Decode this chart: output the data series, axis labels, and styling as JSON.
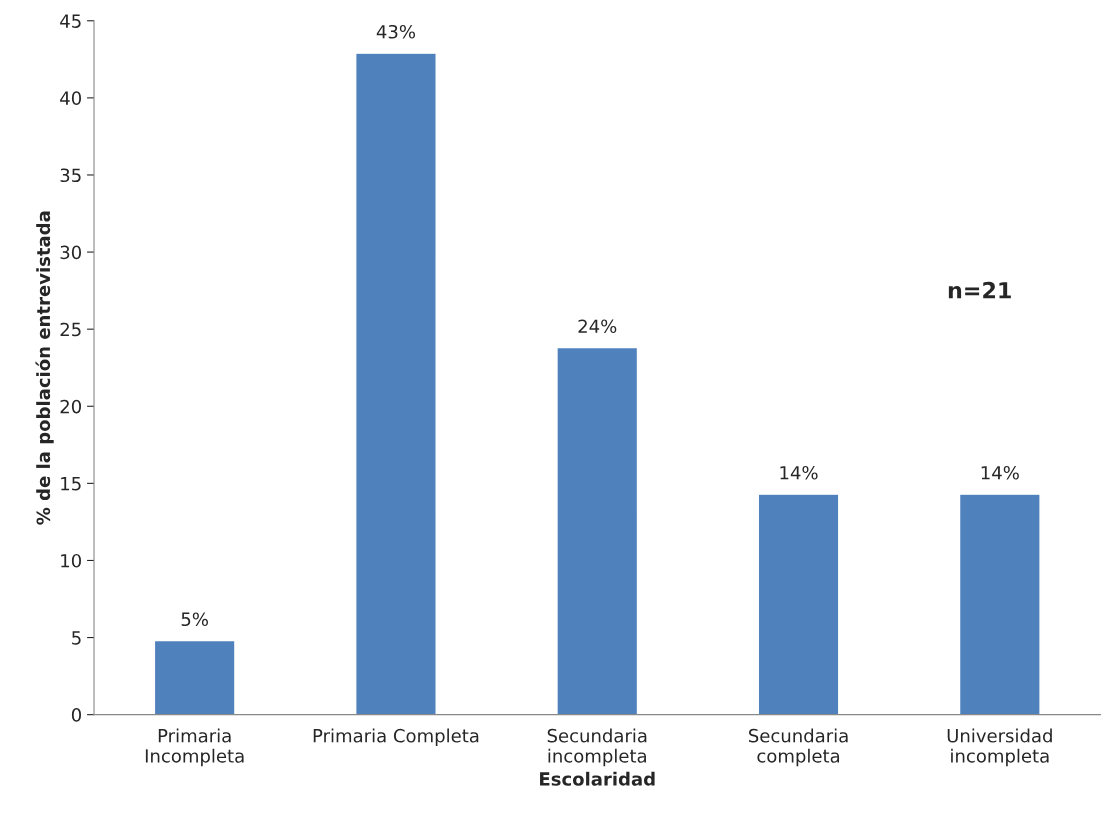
{
  "chart_data": {
    "type": "bar",
    "xlabel": "Escolaridad",
    "ylabel": "% de la población entrevistada",
    "categories": [
      "Primaria\nIncompleta",
      "Primaria Completa",
      "Secundaria\nincompleta",
      "Secundaria\ncompleta",
      "Universidad\nincompleta"
    ],
    "values": [
      4.8,
      42.9,
      23.8,
      14.3,
      14.3
    ],
    "value_labels": [
      "5%",
      "43%",
      "24%",
      "14%",
      "14%"
    ],
    "color": "#4f81bd",
    "ylim": [
      0,
      45
    ],
    "yticks": [
      0,
      5,
      10,
      15,
      20,
      25,
      30,
      35,
      40,
      45
    ],
    "grid": false,
    "annotations": [
      "n=21"
    ]
  }
}
